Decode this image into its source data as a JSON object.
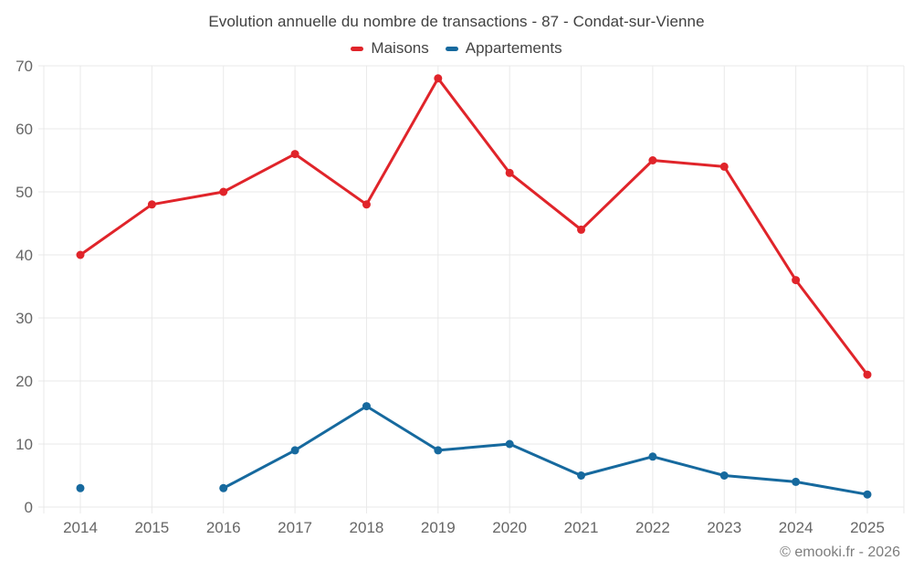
{
  "chart_data": {
    "type": "line",
    "title": "Evolution annuelle du nombre de transactions - 87 - Condat-sur-Vienne",
    "categories": [
      "2014",
      "2015",
      "2016",
      "2017",
      "2018",
      "2019",
      "2020",
      "2021",
      "2022",
      "2023",
      "2024",
      "2025"
    ],
    "series": [
      {
        "name": "Maisons",
        "color": "#e0242a",
        "values": [
          40,
          48,
          50,
          56,
          48,
          68,
          53,
          44,
          55,
          54,
          36,
          21
        ]
      },
      {
        "name": "Appartements",
        "color": "#16699e",
        "values": [
          3,
          null,
          3,
          9,
          16,
          9,
          10,
          5,
          8,
          5,
          4,
          2
        ]
      }
    ],
    "ylim": [
      0,
      70
    ],
    "ytick_step": 10,
    "grid": true,
    "legend_position": "top",
    "grid_color": "#e9e9e9",
    "axis_label_color": "#666666",
    "title_color": "#404040"
  },
  "footer": {
    "text": "© emooki.fr - 2026"
  }
}
